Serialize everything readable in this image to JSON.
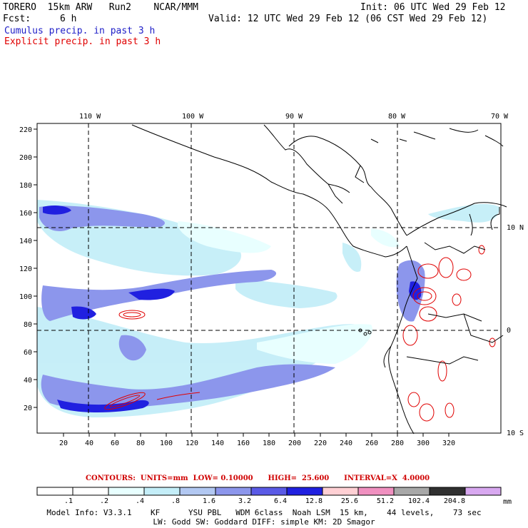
{
  "header": {
    "model": "TORERO  15km ARW   Run2    NCAR/MMM",
    "init": "Init: 06 UTC Wed 29 Feb 12",
    "fcst_label": "Fcst:",
    "fcst_value": "6 h",
    "valid": "Valid: 12 UTC Wed 29 Feb 12 (06 CST Wed 29 Feb 12)",
    "field1": "Cumulus precip. in past 3 h",
    "field2": "Explicit precip. in past 3 h"
  },
  "axes": {
    "lon_labels": [
      "110 W",
      "100 W",
      "90 W",
      "80 W",
      "70 W"
    ],
    "lat_labels": [
      "10 N",
      "0",
      "10 S"
    ],
    "y_ticks": [
      "220",
      "200",
      "180",
      "160",
      "140",
      "120",
      "100",
      "80",
      "60",
      "40",
      "20"
    ],
    "x_ticks": [
      "20",
      "40",
      "60",
      "80",
      "100",
      "120",
      "140",
      "160",
      "180",
      "200",
      "220",
      "240",
      "260",
      "280",
      "300",
      "320"
    ]
  },
  "contours": {
    "text": "CONTOURS:  UNITS=mm  LOW= 0.10000      HIGH=  25.600      INTERVAL=X  4.0000"
  },
  "legend": {
    "colors": [
      "#ffffff",
      "#ffffff",
      "#e8ffff",
      "#c4eef8",
      "#b2c8f2",
      "#8c96ec",
      "#5a5ae6",
      "#2020e0",
      "#ffd0d4",
      "#f090c0",
      "#a8a8a8",
      "#303030",
      "#d8a8f0"
    ],
    "labels": [
      ".1",
      ".2",
      ".4",
      ".8",
      "1.6",
      "3.2",
      "6.4",
      "12.8",
      "25.6",
      "51.2",
      "102.4",
      "204.8"
    ],
    "units": "mm"
  },
  "footer": {
    "line1": "Model Info: V3.3.1    KF      YSU PBL   WDM 6class  Noah LSM  15 km,    44 levels,    73 sec",
    "line2": "LW: Godd SW: Goddard DIFF: simple KM: 2D Smagor"
  }
}
